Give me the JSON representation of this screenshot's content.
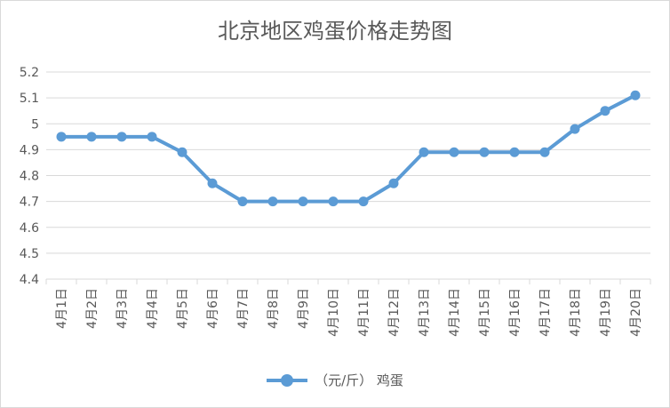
{
  "chart_data": {
    "type": "line",
    "title": "北京地区鸡蛋价格走势图",
    "categories": [
      "4月1日",
      "4月2日",
      "4月3日",
      "4月4日",
      "4月5日",
      "4月6日",
      "4月7日",
      "4月8日",
      "4月9日",
      "4月10日",
      "4月11日",
      "4月12日",
      "4月13日",
      "4月14日",
      "4月15日",
      "4月16日",
      "4月17日",
      "4月18日",
      "4月19日",
      "4月20日"
    ],
    "series": [
      {
        "name": "（元/斤） 鸡蛋",
        "values": [
          4.95,
          4.95,
          4.95,
          4.95,
          4.89,
          4.77,
          4.7,
          4.7,
          4.7,
          4.7,
          4.7,
          4.77,
          4.89,
          4.89,
          4.89,
          4.89,
          4.89,
          4.98,
          5.05,
          5.11
        ]
      }
    ],
    "ylim": [
      4.4,
      5.2
    ],
    "yticks": [
      "4.4",
      "4.5",
      "4.6",
      "4.7",
      "4.8",
      "4.9",
      "5",
      "5.1",
      "5.2"
    ],
    "grid": true,
    "legend_position": "bottom",
    "color": "#5b9bd5"
  }
}
